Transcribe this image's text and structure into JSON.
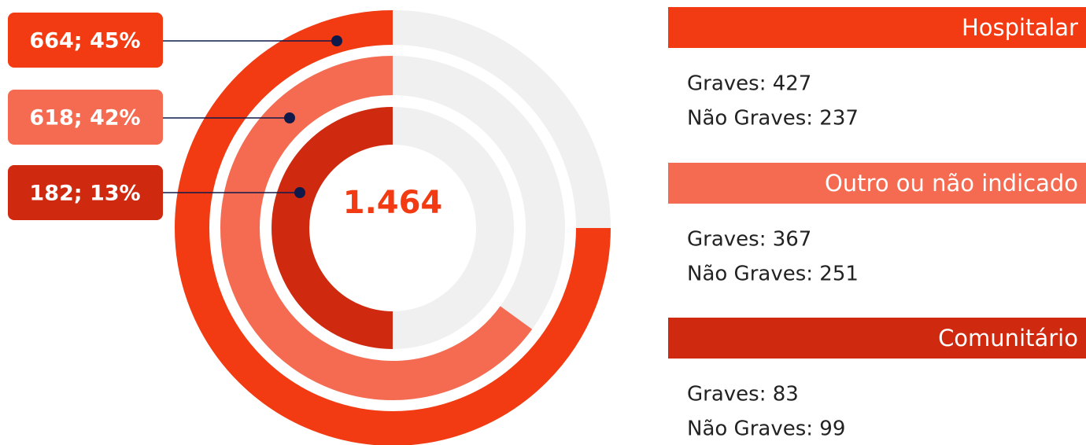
{
  "chart_data": {
    "type": "radial_bar",
    "total": "1.464",
    "series": [
      {
        "name": "Hospitalar",
        "value": 664,
        "percent": 45,
        "value_label": "664; 45%",
        "arc_percent": 75,
        "color": "#f23b12",
        "details": [
          "Graves: 427",
          "Não Graves: 237"
        ]
      },
      {
        "name": "Outro ou não indicado",
        "value": 618,
        "percent": 42,
        "value_label": "618; 42%",
        "arc_percent": 65,
        "color": "#f46b51",
        "details": [
          "Graves: 367",
          "Não Graves: 251"
        ]
      },
      {
        "name": "Comunitário",
        "value": 182,
        "percent": 13,
        "value_label": "182; 13%",
        "arc_percent": 50,
        "color": "#cf2a10",
        "details": [
          "Graves: 83",
          "Não Graves: 99"
        ]
      }
    ]
  }
}
